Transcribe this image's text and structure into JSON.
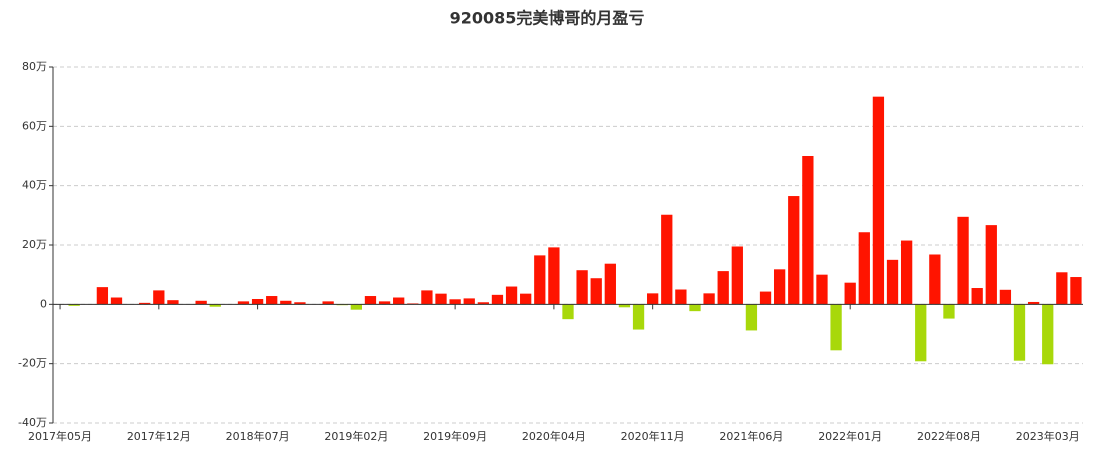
{
  "chart_data": {
    "type": "bar",
    "title": "920085完美博哥的月盈亏",
    "categories": [
      "2017年05月",
      null,
      null,
      null,
      null,
      null,
      null,
      "2017年12月",
      null,
      null,
      null,
      null,
      null,
      null,
      "2018年07月",
      null,
      null,
      null,
      null,
      null,
      null,
      "2019年02月",
      null,
      null,
      null,
      null,
      null,
      null,
      "2019年09月",
      null,
      null,
      null,
      null,
      null,
      null,
      "2020年04月",
      null,
      null,
      null,
      null,
      null,
      null,
      "2020年11月",
      null,
      null,
      null,
      null,
      null,
      null,
      "2021年06月",
      null,
      null,
      null,
      null,
      null,
      null,
      "2022年01月",
      null,
      null,
      null,
      null,
      null,
      null,
      "2022年08月",
      null,
      null,
      null,
      null,
      null,
      null,
      "2023年03月",
      null,
      null
    ],
    "values": [
      0,
      -0.5,
      0,
      5.8,
      2.3,
      0,
      0.5,
      4.7,
      1.4,
      0,
      1.2,
      -0.8,
      0,
      1.0,
      1.8,
      2.8,
      1.2,
      0.7,
      0,
      1.0,
      -0.3,
      -1.8,
      2.8,
      1.0,
      2.3,
      0.3,
      4.7,
      3.6,
      1.7,
      2.0,
      0.7,
      3.2,
      6.0,
      3.6,
      16.5,
      19.2,
      -5,
      11.5,
      8.8,
      13.7,
      -1,
      -8.5,
      3.7,
      30.2,
      5,
      -2.3,
      3.7,
      11.2,
      19.5,
      -8.8,
      4.3,
      11.8,
      36.5,
      50,
      10,
      -15.5,
      7.3,
      24.3,
      70,
      15,
      21.5,
      -19.2,
      16.8,
      -4.8,
      29.5,
      5.5,
      26.7,
      4.9,
      -19,
      0.8,
      -20.2,
      10.8,
      9.2
    ],
    "color_positive": "#ff1400",
    "color_negative": "#a8d80a",
    "ylim": [
      -40,
      80
    ],
    "yticks": [
      {
        "value": -40,
        "label": "-40万"
      },
      {
        "value": -20,
        "label": "-20万"
      },
      {
        "value": 0,
        "label": "0"
      },
      {
        "value": 20,
        "label": "20万"
      },
      {
        "value": 40,
        "label": "40万"
      },
      {
        "value": 60,
        "label": "60万"
      },
      {
        "value": 80,
        "label": "80万"
      }
    ],
    "grid": true
  }
}
